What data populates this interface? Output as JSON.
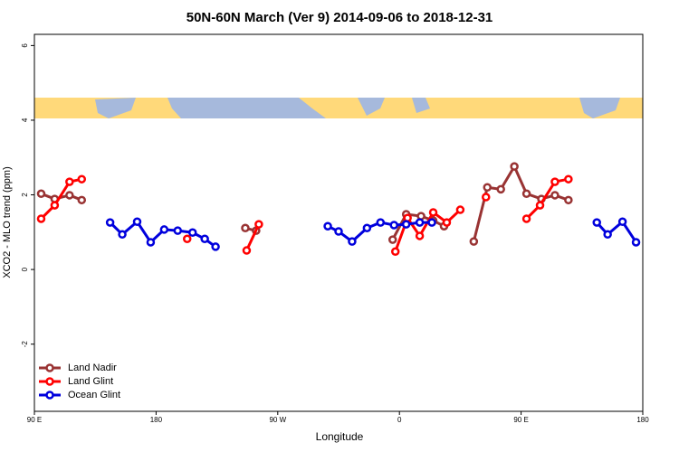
{
  "chart_data": {
    "type": "line",
    "title": "50N-60N March (Ver 9)   2014-09-06 to 2018-12-31",
    "x_label": "Longitude",
    "y_label": "XCO2 - MLO trend (ppm)",
    "xlim": [
      90,
      540
    ],
    "xticks": [
      {
        "value": 90,
        "label": "90 E"
      },
      {
        "value": 180,
        "label": "180"
      },
      {
        "value": 270,
        "label": "90 W"
      },
      {
        "value": 360,
        "label": "0"
      },
      {
        "value": 450,
        "label": "90 E"
      },
      {
        "value": 540,
        "label": "180"
      }
    ],
    "ylim": [
      -3.8,
      6.3
    ],
    "yticks": [
      -2,
      0,
      2,
      4,
      6
    ],
    "legend": "bottom-left",
    "series": [
      {
        "name": "Land Nadir",
        "color": "#993333",
        "x": [
          95,
          105,
          116,
          125,
          null,
          246,
          254,
          null,
          355,
          365,
          376,
          385,
          393,
          null,
          415,
          425,
          435,
          445,
          454,
          465,
          475,
          485
        ],
        "values": [
          2.03,
          1.89,
          1.99,
          1.86,
          null,
          1.11,
          1.04,
          null,
          0.8,
          1.48,
          1.43,
          1.31,
          1.16,
          null,
          0.75,
          2.2,
          2.15,
          2.76,
          2.03,
          1.89,
          1.99,
          1.86
        ]
      },
      {
        "name": "Land Glint",
        "color": "#ff0000",
        "x": [
          95,
          105,
          116,
          125,
          null,
          203,
          null,
          247,
          256,
          null,
          357,
          366,
          375,
          385,
          395,
          405,
          null,
          424,
          null,
          454,
          464,
          475,
          485
        ],
        "values": [
          1.36,
          1.72,
          2.35,
          2.42,
          null,
          0.82,
          null,
          0.51,
          1.21,
          null,
          0.48,
          1.38,
          0.9,
          1.53,
          1.26,
          1.6,
          null,
          1.94,
          null,
          1.36,
          1.72,
          2.35,
          2.42
        ]
      },
      {
        "name": "Ocean Glint",
        "color": "#0000dd",
        "x": [
          146,
          155,
          166,
          176,
          186,
          196,
          207,
          216,
          224,
          null,
          307,
          315,
          325,
          336,
          346,
          356,
          365,
          375,
          384,
          null,
          506,
          514,
          525,
          535
        ],
        "values": [
          1.26,
          0.94,
          1.28,
          0.73,
          1.07,
          1.04,
          0.99,
          0.82,
          0.61,
          null,
          1.16,
          1.02,
          0.75,
          1.11,
          1.26,
          1.19,
          1.21,
          1.26,
          1.26,
          null,
          1.26,
          0.94,
          1.28,
          0.73
        ]
      }
    ]
  }
}
